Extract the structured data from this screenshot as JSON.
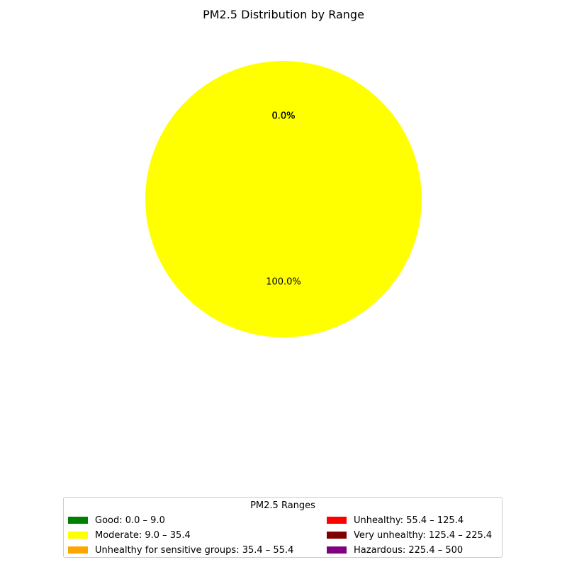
{
  "chart_data": {
    "type": "pie",
    "title": "PM2.5 Distribution by Range",
    "legend": {
      "title": "PM2.5 Ranges",
      "placement": "lower-center",
      "columns": 2
    },
    "slices": [
      {
        "label": "Good: 0.0 – 9.0",
        "value": 0.0,
        "pct_label": "0.0%",
        "color": "#008000"
      },
      {
        "label": "Moderate: 9.0 – 35.4",
        "value": 100.0,
        "pct_label": "100.0%",
        "color": "#ffff00"
      },
      {
        "label": "Unhealthy for sensitive groups: 35.4 – 55.4",
        "value": 0.0,
        "pct_label": "0.0%",
        "color": "#ffa500"
      },
      {
        "label": "Unhealthy: 55.4 – 125.4",
        "value": 0.0,
        "pct_label": "0.0%",
        "color": "#ff0000"
      },
      {
        "label": "Very unhealthy: 125.4 – 225.4",
        "value": 0.0,
        "pct_label": "0.0%",
        "color": "#800000"
      },
      {
        "label": "Hazardous: 225.4 – 500",
        "value": 0.0,
        "pct_label": "0.0%",
        "color": "#800080"
      }
    ]
  }
}
